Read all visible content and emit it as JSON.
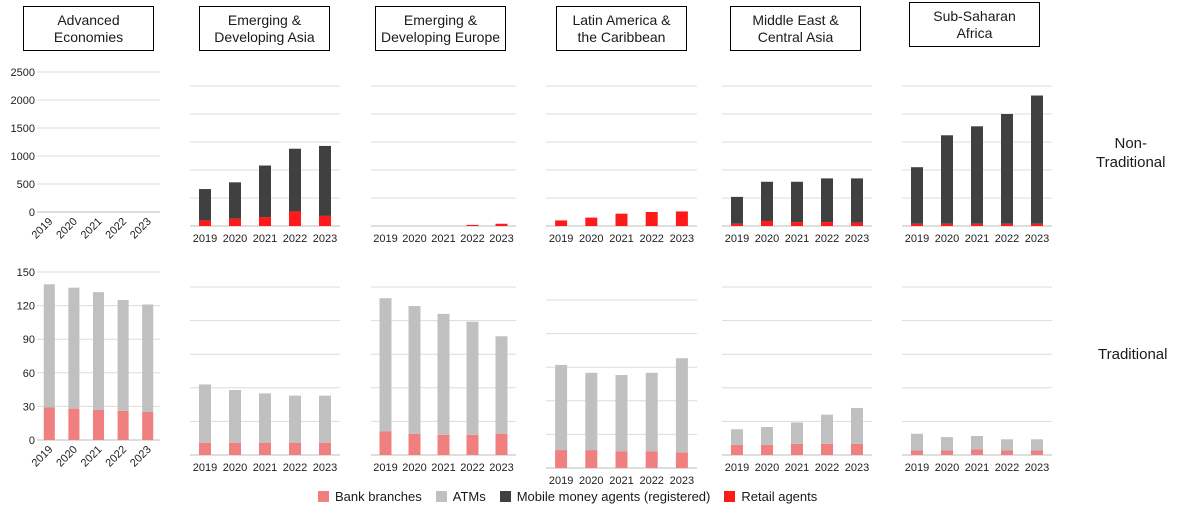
{
  "chart_data": {
    "type": "bar",
    "stacked": true,
    "years": [
      "2019",
      "2020",
      "2021",
      "2022",
      "2023"
    ],
    "regions": [
      "Advanced\nEconomies",
      "Emerging &\nDeveloping Asia",
      "Emerging &\nDeveloping Europe",
      "Latin America &\nthe Caribbean",
      "Middle East &\nCentral Asia",
      "Sub-Saharan\nAfrica"
    ],
    "row_labels": {
      "non_traditional": "Non-\nTraditional",
      "traditional": "Traditional"
    },
    "non_traditional": {
      "yticks": [
        "2500",
        "2000",
        "1500",
        "1000",
        "500",
        "0"
      ],
      "ylim": [
        0,
        2500
      ],
      "panels": [
        {
          "region": "Advanced Economies",
          "mobile_money_agents": [
            0,
            0,
            0,
            0,
            0
          ],
          "retail_agents": [
            0,
            0,
            0,
            0,
            0
          ]
        },
        {
          "region": "Emerging & Developing Asia",
          "mobile_money_agents": [
            560,
            650,
            920,
            1120,
            1250
          ],
          "retail_agents": [
            100,
            130,
            160,
            260,
            180
          ]
        },
        {
          "region": "Emerging & Developing Europe",
          "mobile_money_agents": [
            0,
            0,
            0,
            0,
            0
          ],
          "retail_agents": [
            0,
            0,
            0,
            20,
            40
          ]
        },
        {
          "region": "Latin America & the Caribbean",
          "mobile_money_agents": [
            0,
            0,
            0,
            0,
            0
          ],
          "retail_agents": [
            100,
            150,
            220,
            250,
            260
          ]
        },
        {
          "region": "Middle East & Central Asia",
          "mobile_money_agents": [
            480,
            700,
            720,
            780,
            790
          ],
          "retail_agents": [
            40,
            90,
            70,
            70,
            60
          ]
        },
        {
          "region": "Sub-Saharan Africa",
          "mobile_money_agents": [
            1010,
            1580,
            1740,
            1960,
            2290
          ],
          "retail_agents": [
            40,
            40,
            40,
            40,
            40
          ]
        }
      ]
    },
    "traditional": {
      "yticks": [
        "150",
        "120",
        "90",
        "60",
        "30",
        "0"
      ],
      "ylim": [
        0,
        150
      ],
      "panels": [
        {
          "region": "Advanced Economies",
          "bank_branches": [
            29,
            28,
            27,
            26,
            25
          ],
          "atms": [
            110,
            108,
            105,
            99,
            96
          ]
        },
        {
          "region": "Emerging & Developing Asia",
          "bank_branches": [
            11,
            11,
            11,
            11,
            11
          ],
          "atms": [
            52,
            47,
            44,
            42,
            42
          ]
        },
        {
          "region": "Emerging & Developing Europe",
          "bank_branches": [
            21,
            19,
            18,
            18,
            19
          ],
          "atms": [
            119,
            114,
            108,
            101,
            87
          ]
        },
        {
          "region": "Latin America & the Caribbean",
          "bank_branches": [
            16,
            16,
            15,
            15,
            14
          ],
          "atms": [
            76,
            69,
            68,
            70,
            84
          ]
        },
        {
          "region": "Middle East & Central Asia",
          "bank_branches": [
            9,
            9,
            10,
            10,
            10
          ],
          "atms": [
            14,
            16,
            19,
            26,
            32
          ]
        },
        {
          "region": "Sub-Saharan Africa",
          "bank_branches": [
            4,
            4,
            5,
            4,
            4
          ],
          "atms": [
            15,
            12,
            12,
            10,
            10
          ]
        }
      ]
    },
    "legend": [
      {
        "label": "Bank branches",
        "color": "#f07f7f"
      },
      {
        "label": "ATMs",
        "color": "#c0c0c0"
      },
      {
        "label": "Mobile money agents (registered)",
        "color": "#404040"
      },
      {
        "label": "Retail agents",
        "color": "#ff1a1a"
      }
    ]
  }
}
